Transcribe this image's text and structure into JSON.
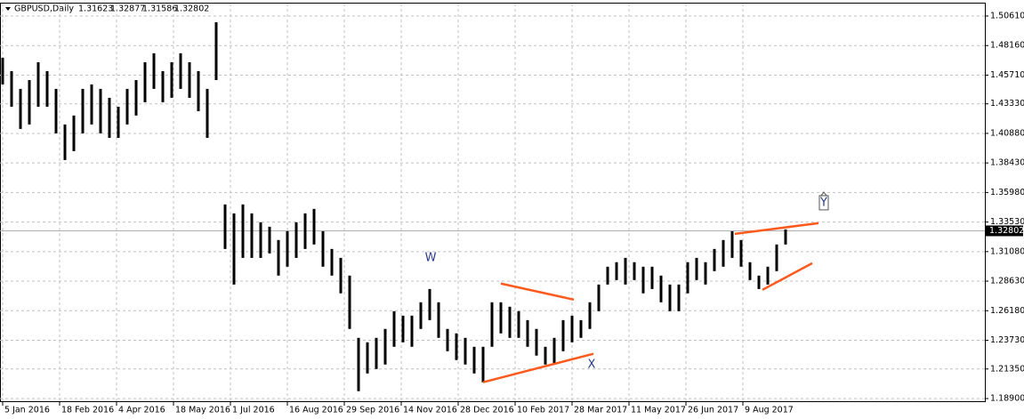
{
  "chart_data": {
    "type": "hilo",
    "symbol": "GBPUSD,Daily",
    "header_prices": [
      1.31623,
      1.32877,
      1.31586,
      1.32802
    ],
    "current_price": 1.32802,
    "color": "#000000",
    "line_color": "#ff5a1e",
    "grid": true,
    "xlim": [
      -1.5,
      552
    ],
    "ylim": [
      1.18605,
      1.51642
    ],
    "xticks": [
      {
        "value": 0,
        "label": "5 Jan 2016"
      },
      {
        "value": 32,
        "label": "18 Feb 2016"
      },
      {
        "value": 64,
        "label": "4 Apr 2016"
      },
      {
        "value": 96,
        "label": "18 May 2016"
      },
      {
        "value": 128,
        "label": "1 Jul 2016"
      },
      {
        "value": 160,
        "label": "16 Aug 2016"
      },
      {
        "value": 192,
        "label": "29 Sep 2016"
      },
      {
        "value": 224,
        "label": "14 Nov 2016"
      },
      {
        "value": 256,
        "label": "28 Dec 2016"
      },
      {
        "value": 288,
        "label": "10 Feb 2017"
      },
      {
        "value": 320,
        "label": "28 Mar 2017"
      },
      {
        "value": 352,
        "label": "11 May 2017"
      },
      {
        "value": 384,
        "label": "26 Jun 2017"
      },
      {
        "value": 416,
        "label": "9 Aug 2017"
      }
    ],
    "yticks": [
      {
        "value": 1.5061,
        "label": "1.50610"
      },
      {
        "value": 1.4816,
        "label": "1.48160"
      },
      {
        "value": 1.4571,
        "label": "1.45710"
      },
      {
        "value": 1.4333,
        "label": "1.43330"
      },
      {
        "value": 1.4088,
        "label": "1.40880"
      },
      {
        "value": 1.3843,
        "label": "1.38430"
      },
      {
        "value": 1.3598,
        "label": "1.35980"
      },
      {
        "value": 1.3353,
        "label": "1.33530"
      },
      {
        "value": 1.3108,
        "label": "1.31080"
      },
      {
        "value": 1.2863,
        "label": "1.28630"
      },
      {
        "value": 1.2618,
        "label": "1.26180"
      },
      {
        "value": 1.2373,
        "label": "1.23730"
      },
      {
        "value": 1.2135,
        "label": "1.21350"
      },
      {
        "value": 1.189,
        "label": "1.18900"
      }
    ],
    "x": [
      0,
      5,
      10,
      15,
      20,
      25,
      30,
      35,
      40,
      45,
      50,
      55,
      60,
      65,
      70,
      75,
      80,
      85,
      90,
      95,
      100,
      105,
      110,
      115,
      120,
      125,
      130,
      135,
      140,
      145,
      150,
      155,
      160,
      165,
      170,
      175,
      180,
      185,
      190,
      195,
      200,
      205,
      210,
      215,
      220,
      225,
      230,
      235,
      240,
      245,
      250,
      255,
      260,
      265,
      270,
      275,
      280,
      285,
      290,
      295,
      300,
      305,
      310,
      315,
      320,
      325,
      330,
      335,
      340,
      345,
      350,
      355,
      360,
      365,
      370,
      375,
      380,
      385,
      390,
      395,
      400,
      405,
      410,
      415,
      420,
      425,
      430,
      435,
      440
    ],
    "high": [
      1.4715,
      1.4604,
      1.4457,
      1.453,
      1.4678,
      1.4604,
      1.4457,
      1.4162,
      1.4236,
      1.4457,
      1.4494,
      1.4457,
      1.4383,
      1.4309,
      1.4457,
      1.453,
      1.4678,
      1.4752,
      1.4604,
      1.4678,
      1.4752,
      1.4678,
      1.4604,
      1.4457,
      1.5009,
      1.3499,
      1.3425,
      1.3499,
      1.3425,
      1.3351,
      1.3314,
      1.3204,
      1.3277,
      1.3351,
      1.3425,
      1.3462,
      1.3277,
      1.313,
      1.3056,
      1.2909,
      1.2393,
      1.2356,
      1.2393,
      1.2467,
      1.2614,
      1.2577,
      1.2577,
      1.2688,
      1.2798,
      1.2688,
      1.2467,
      1.243,
      1.2393,
      1.2319,
      1.2319,
      1.2688,
      1.2688,
      1.2651,
      1.2614,
      1.254,
      1.2467,
      1.2319,
      1.2393,
      1.254,
      1.2577,
      1.254,
      1.2688,
      1.2835,
      1.2983,
      1.302,
      1.3056,
      1.302,
      1.2983,
      1.2983,
      1.2909,
      1.2835,
      1.2835,
      1.302,
      1.3056,
      1.302,
      1.313,
      1.3204,
      1.3277,
      1.3204,
      1.302,
      1.2909,
      1.2983,
      1.3167,
      1.3292
    ],
    "low": [
      1.4494,
      1.4309,
      1.4125,
      1.4162,
      1.4309,
      1.4309,
      1.4088,
      1.3867,
      1.3941,
      1.4088,
      1.4162,
      1.4088,
      1.4051,
      1.4051,
      1.4162,
      1.4236,
      1.4346,
      1.4457,
      1.4346,
      1.4383,
      1.4457,
      1.4383,
      1.4272,
      1.4051,
      1.453,
      1.313,
      1.2835,
      1.3056,
      1.3056,
      1.3056,
      1.3093,
      1.2909,
      1.2983,
      1.3056,
      1.313,
      1.3167,
      1.2983,
      1.2909,
      1.2762,
      1.2467,
      1.1951,
      1.2098,
      1.2135,
      1.2172,
      1.2319,
      1.2356,
      1.2319,
      1.2467,
      1.254,
      1.2393,
      1.2282,
      1.2209,
      1.2172,
      1.2098,
      1.2025,
      1.2319,
      1.243,
      1.2393,
      1.2393,
      1.2319,
      1.2246,
      1.2172,
      1.2172,
      1.2282,
      1.2356,
      1.2393,
      1.2467,
      1.2614,
      1.2835,
      1.2872,
      1.2835,
      1.2872,
      1.2762,
      1.2798,
      1.2688,
      1.2614,
      1.2614,
      1.2762,
      1.2872,
      1.2835,
      1.2946,
      1.2983,
      1.3056,
      1.2983,
      1.2872,
      1.2798,
      1.2835,
      1.2946,
      1.3167
    ],
    "trendlines": [
      {
        "x": [
          280,
          321
        ],
        "y": [
          1.2843,
          1.271
        ]
      },
      {
        "x": [
          270,
          332
        ],
        "y": [
          1.2025,
          1.2261
        ]
      },
      {
        "x": [
          411.5,
          458.5
        ],
        "y": [
          1.3255,
          1.3344
        ]
      },
      {
        "x": [
          427,
          455
        ],
        "y": [
          1.2791,
          1.3012
        ]
      }
    ],
    "annotations": [
      {
        "text": "W",
        "x": 240.5,
        "y": 1.3056
      },
      {
        "text": "X",
        "x": 331,
        "y": 1.2172
      },
      {
        "text": "Y",
        "x": 461.5,
        "y": 1.3513
      }
    ]
  }
}
